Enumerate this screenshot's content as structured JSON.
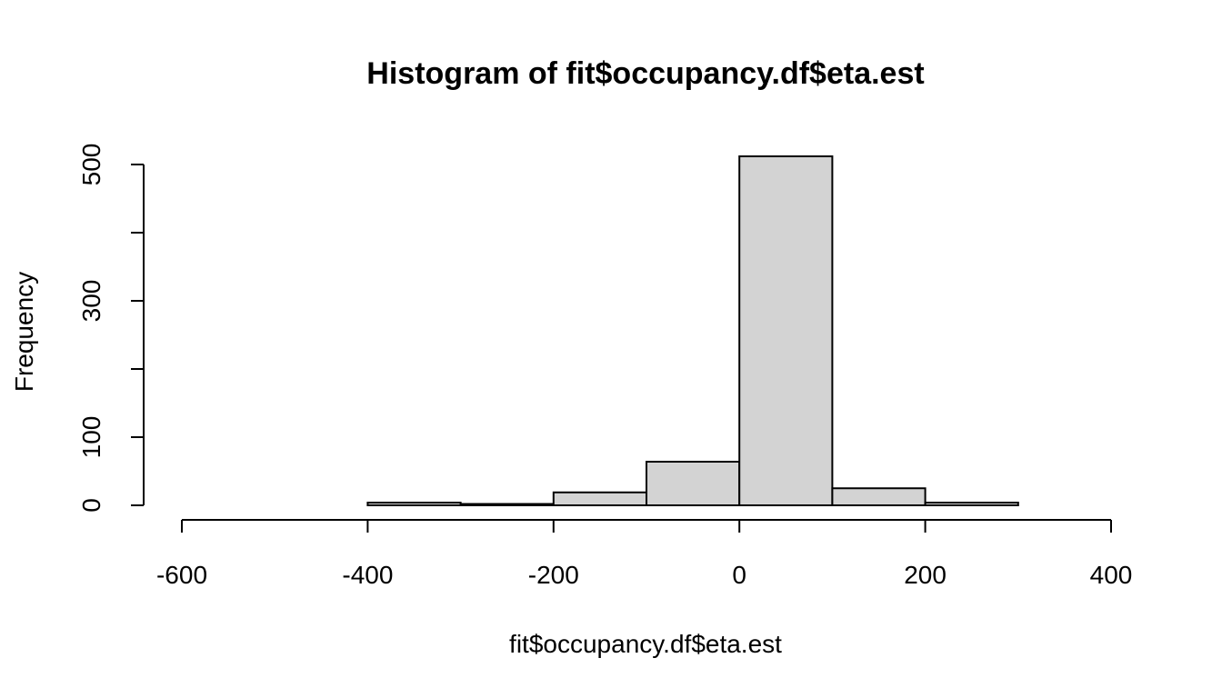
{
  "chart_data": {
    "type": "bar",
    "subtype": "histogram",
    "title": "Histogram of fit$occupancy.df$eta.est",
    "xlabel": "fit$occupancy.df$eta.est",
    "ylabel": "Frequency",
    "bin_edges": [
      -600,
      -500,
      -400,
      -300,
      -200,
      -100,
      0,
      100,
      200,
      300,
      400
    ],
    "values": [
      0,
      0,
      4,
      2,
      19,
      64,
      512,
      25,
      4,
      0
    ],
    "xlim": [
      -600,
      400
    ],
    "ylim": [
      0,
      512
    ],
    "x_ticks": [
      -600,
      -400,
      -200,
      0,
      200,
      400
    ],
    "x_tick_labels": [
      "-600",
      "-400",
      "-200",
      "0",
      "200",
      "400"
    ],
    "y_ticks": [
      0,
      100,
      200,
      300,
      400,
      500
    ],
    "y_tick_labels": [
      "0",
      "100",
      "",
      "300",
      "",
      "500"
    ],
    "bar_fill": "#d3d3d3",
    "bar_stroke": "#000000",
    "grid": false,
    "legend": "none"
  }
}
